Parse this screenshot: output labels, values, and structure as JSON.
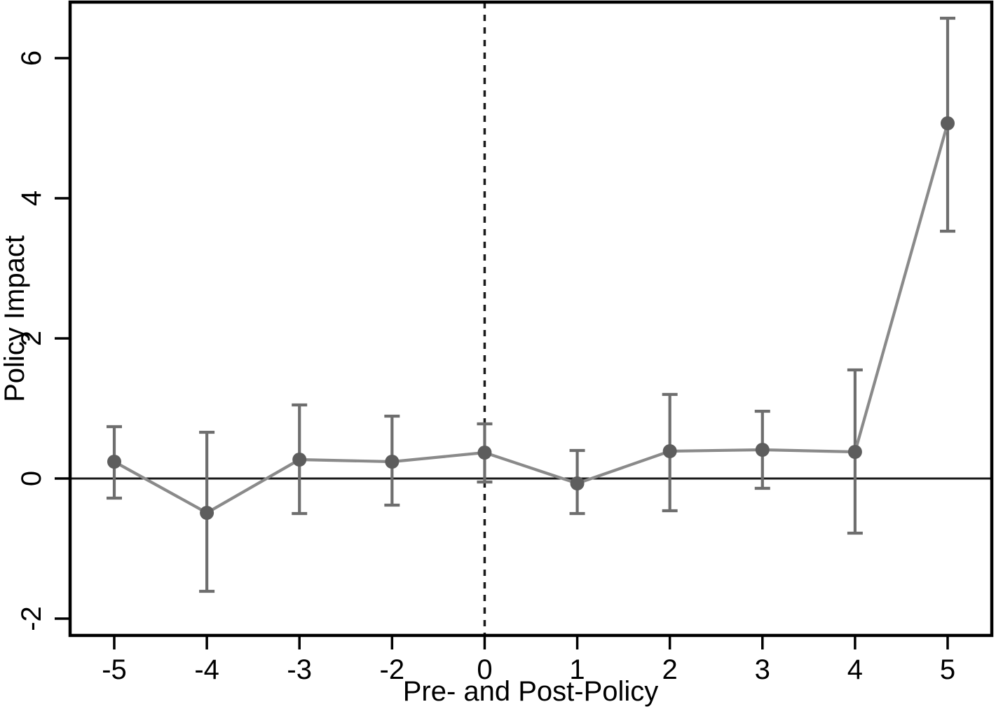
{
  "chart_data": {
    "type": "line",
    "subtype": "event-study-with-error-bars",
    "title": "",
    "xlabel": "Pre- and Post-Policy",
    "ylabel": "Policy Impact",
    "categories": [
      "-5",
      "-4",
      "-3",
      "-2",
      "0",
      "1",
      "2",
      "3",
      "4",
      "5"
    ],
    "points": [
      {
        "x": "-5",
        "estimate": 0.24,
        "ci_low": -0.28,
        "ci_high": 0.74
      },
      {
        "x": "-4",
        "estimate": -0.49,
        "ci_low": -1.61,
        "ci_high": 0.66
      },
      {
        "x": "-3",
        "estimate": 0.27,
        "ci_low": -0.5,
        "ci_high": 1.05
      },
      {
        "x": "-2",
        "estimate": 0.24,
        "ci_low": -0.38,
        "ci_high": 0.89
      },
      {
        "x": "0",
        "estimate": 0.37,
        "ci_low": -0.05,
        "ci_high": 0.78
      },
      {
        "x": "1",
        "estimate": -0.07,
        "ci_low": -0.5,
        "ci_high": 0.4
      },
      {
        "x": "2",
        "estimate": 0.39,
        "ci_low": -0.46,
        "ci_high": 1.2
      },
      {
        "x": "3",
        "estimate": 0.41,
        "ci_low": -0.14,
        "ci_high": 0.96
      },
      {
        "x": "4",
        "estimate": 0.38,
        "ci_low": -0.78,
        "ci_high": 1.55
      },
      {
        "x": "5",
        "estimate": 5.07,
        "ci_low": 3.53,
        "ci_high": 6.57
      }
    ],
    "y_ticks": [
      -2,
      0,
      2,
      4,
      6
    ],
    "ylim": [
      -2.24,
      6.8
    ],
    "reference_line_y": 0,
    "event_line_x": "0",
    "grid": false,
    "legend": false,
    "colors": {
      "marker": "#5d5d5d",
      "series_line": "#8a8a8a",
      "error_bar": "#6e6e6e",
      "axis": "#000000",
      "zero_line": "#1a1a1a",
      "event_line": "#1a1a1a",
      "background": "#ffffff"
    }
  }
}
